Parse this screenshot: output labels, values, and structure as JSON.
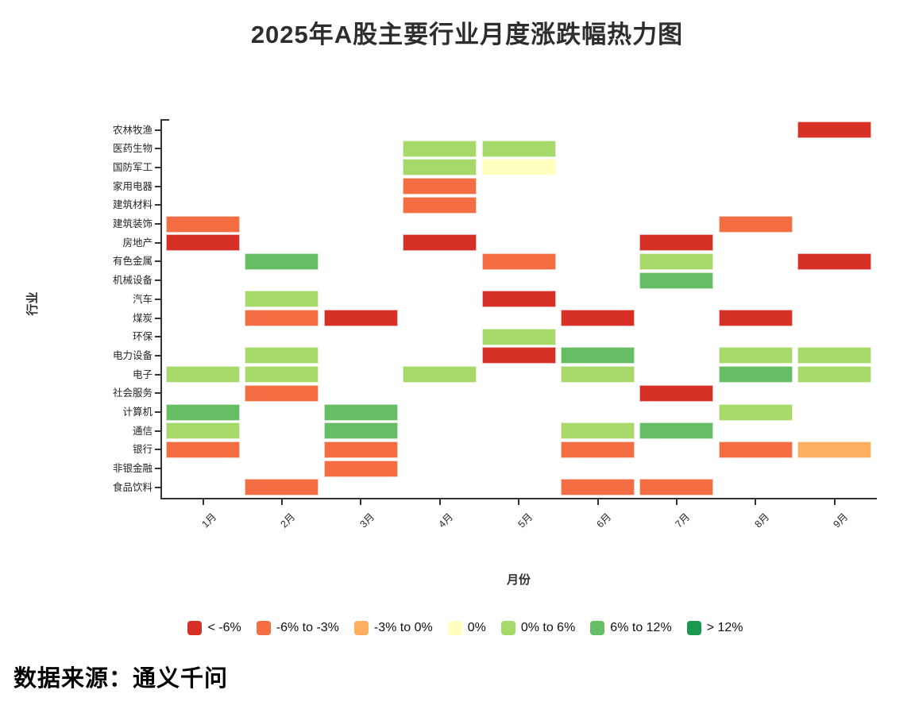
{
  "title": "2025年A股主要行业月度涨跌幅热力图",
  "source_note": "数据来源：通义千问",
  "chart_data": {
    "type": "heatmap",
    "title": "2025年A股主要行业月度涨跌幅热力图",
    "xlabel": "月份",
    "ylabel": "行业",
    "grid": false,
    "legend_position": "bottom",
    "x_categories": [
      "1月",
      "2月",
      "3月",
      "4月",
      "5月",
      "6月",
      "7月",
      "8月",
      "9月"
    ],
    "y_categories": [
      "农林牧渔",
      "医药生物",
      "国防军工",
      "家用电器",
      "建筑材料",
      "建筑装饰",
      "房地产",
      "有色金属",
      "机械设备",
      "汽车",
      "煤炭",
      "环保",
      "电力设备",
      "电子",
      "社会服务",
      "计算机",
      "通信",
      "银行",
      "非银金融",
      "食品饮料"
    ],
    "buckets": [
      {
        "label": "< -6%",
        "color": "#d73027"
      },
      {
        "label": "-6% to -3%",
        "color": "#f46d43"
      },
      {
        "label": "-3% to 0%",
        "color": "#fdae61"
      },
      {
        "label": "0%",
        "color": "#ffffbf"
      },
      {
        "label": "0% to 6%",
        "color": "#a6d96a"
      },
      {
        "label": "6% to 12%",
        "color": "#66bd63"
      },
      {
        "label": "> 12%",
        "color": "#1a9850"
      }
    ],
    "cells": [
      {
        "y": "农林牧渔",
        "x": "9月",
        "bucket": "< -6%"
      },
      {
        "y": "医药生物",
        "x": "4月",
        "bucket": "0% to 6%"
      },
      {
        "y": "医药生物",
        "x": "5月",
        "bucket": "0% to 6%"
      },
      {
        "y": "国防军工",
        "x": "4月",
        "bucket": "0% to 6%"
      },
      {
        "y": "国防军工",
        "x": "5月",
        "bucket": "0%"
      },
      {
        "y": "家用电器",
        "x": "4月",
        "bucket": "-6% to -3%"
      },
      {
        "y": "建筑材料",
        "x": "4月",
        "bucket": "-6% to -3%"
      },
      {
        "y": "建筑装饰",
        "x": "1月",
        "bucket": "-6% to -3%"
      },
      {
        "y": "建筑装饰",
        "x": "8月",
        "bucket": "-6% to -3%"
      },
      {
        "y": "房地产",
        "x": "1月",
        "bucket": "< -6%"
      },
      {
        "y": "房地产",
        "x": "4月",
        "bucket": "< -6%"
      },
      {
        "y": "房地产",
        "x": "7月",
        "bucket": "< -6%"
      },
      {
        "y": "有色金属",
        "x": "2月",
        "bucket": "6% to 12%"
      },
      {
        "y": "有色金属",
        "x": "5月",
        "bucket": "-6% to -3%"
      },
      {
        "y": "有色金属",
        "x": "7月",
        "bucket": "0% to 6%"
      },
      {
        "y": "有色金属",
        "x": "9月",
        "bucket": "< -6%"
      },
      {
        "y": "机械设备",
        "x": "7月",
        "bucket": "6% to 12%"
      },
      {
        "y": "汽车",
        "x": "2月",
        "bucket": "0% to 6%"
      },
      {
        "y": "汽车",
        "x": "5月",
        "bucket": "< -6%"
      },
      {
        "y": "煤炭",
        "x": "2月",
        "bucket": "-6% to -3%"
      },
      {
        "y": "煤炭",
        "x": "3月",
        "bucket": "< -6%"
      },
      {
        "y": "煤炭",
        "x": "6月",
        "bucket": "< -6%"
      },
      {
        "y": "煤炭",
        "x": "8月",
        "bucket": "< -6%"
      },
      {
        "y": "环保",
        "x": "5月",
        "bucket": "0% to 6%"
      },
      {
        "y": "电力设备",
        "x": "2月",
        "bucket": "0% to 6%"
      },
      {
        "y": "电力设备",
        "x": "5月",
        "bucket": "< -6%"
      },
      {
        "y": "电力设备",
        "x": "6月",
        "bucket": "6% to 12%"
      },
      {
        "y": "电力设备",
        "x": "8月",
        "bucket": "0% to 6%"
      },
      {
        "y": "电力设备",
        "x": "9月",
        "bucket": "0% to 6%"
      },
      {
        "y": "电子",
        "x": "1月",
        "bucket": "0% to 6%"
      },
      {
        "y": "电子",
        "x": "2月",
        "bucket": "0% to 6%"
      },
      {
        "y": "电子",
        "x": "4月",
        "bucket": "0% to 6%"
      },
      {
        "y": "电子",
        "x": "6月",
        "bucket": "0% to 6%"
      },
      {
        "y": "电子",
        "x": "8月",
        "bucket": "6% to 12%"
      },
      {
        "y": "电子",
        "x": "9月",
        "bucket": "0% to 6%"
      },
      {
        "y": "社会服务",
        "x": "2月",
        "bucket": "-6% to -3%"
      },
      {
        "y": "社会服务",
        "x": "7月",
        "bucket": "< -6%"
      },
      {
        "y": "计算机",
        "x": "1月",
        "bucket": "6% to 12%"
      },
      {
        "y": "计算机",
        "x": "3月",
        "bucket": "6% to 12%"
      },
      {
        "y": "计算机",
        "x": "8月",
        "bucket": "0% to 6%"
      },
      {
        "y": "通信",
        "x": "1月",
        "bucket": "0% to 6%"
      },
      {
        "y": "通信",
        "x": "3月",
        "bucket": "6% to 12%"
      },
      {
        "y": "通信",
        "x": "6月",
        "bucket": "0% to 6%"
      },
      {
        "y": "通信",
        "x": "7月",
        "bucket": "6% to 12%"
      },
      {
        "y": "银行",
        "x": "1月",
        "bucket": "-6% to -3%"
      },
      {
        "y": "银行",
        "x": "3月",
        "bucket": "-6% to -3%"
      },
      {
        "y": "银行",
        "x": "6月",
        "bucket": "-6% to -3%"
      },
      {
        "y": "银行",
        "x": "8月",
        "bucket": "-6% to -3%"
      },
      {
        "y": "银行",
        "x": "9月",
        "bucket": "-3% to 0%"
      },
      {
        "y": "非银金融",
        "x": "3月",
        "bucket": "-6% to -3%"
      },
      {
        "y": "食品饮料",
        "x": "2月",
        "bucket": "-6% to -3%"
      },
      {
        "y": "食品饮料",
        "x": "6月",
        "bucket": "-6% to -3%"
      },
      {
        "y": "食品饮料",
        "x": "7月",
        "bucket": "-6% to -3%"
      }
    ]
  }
}
